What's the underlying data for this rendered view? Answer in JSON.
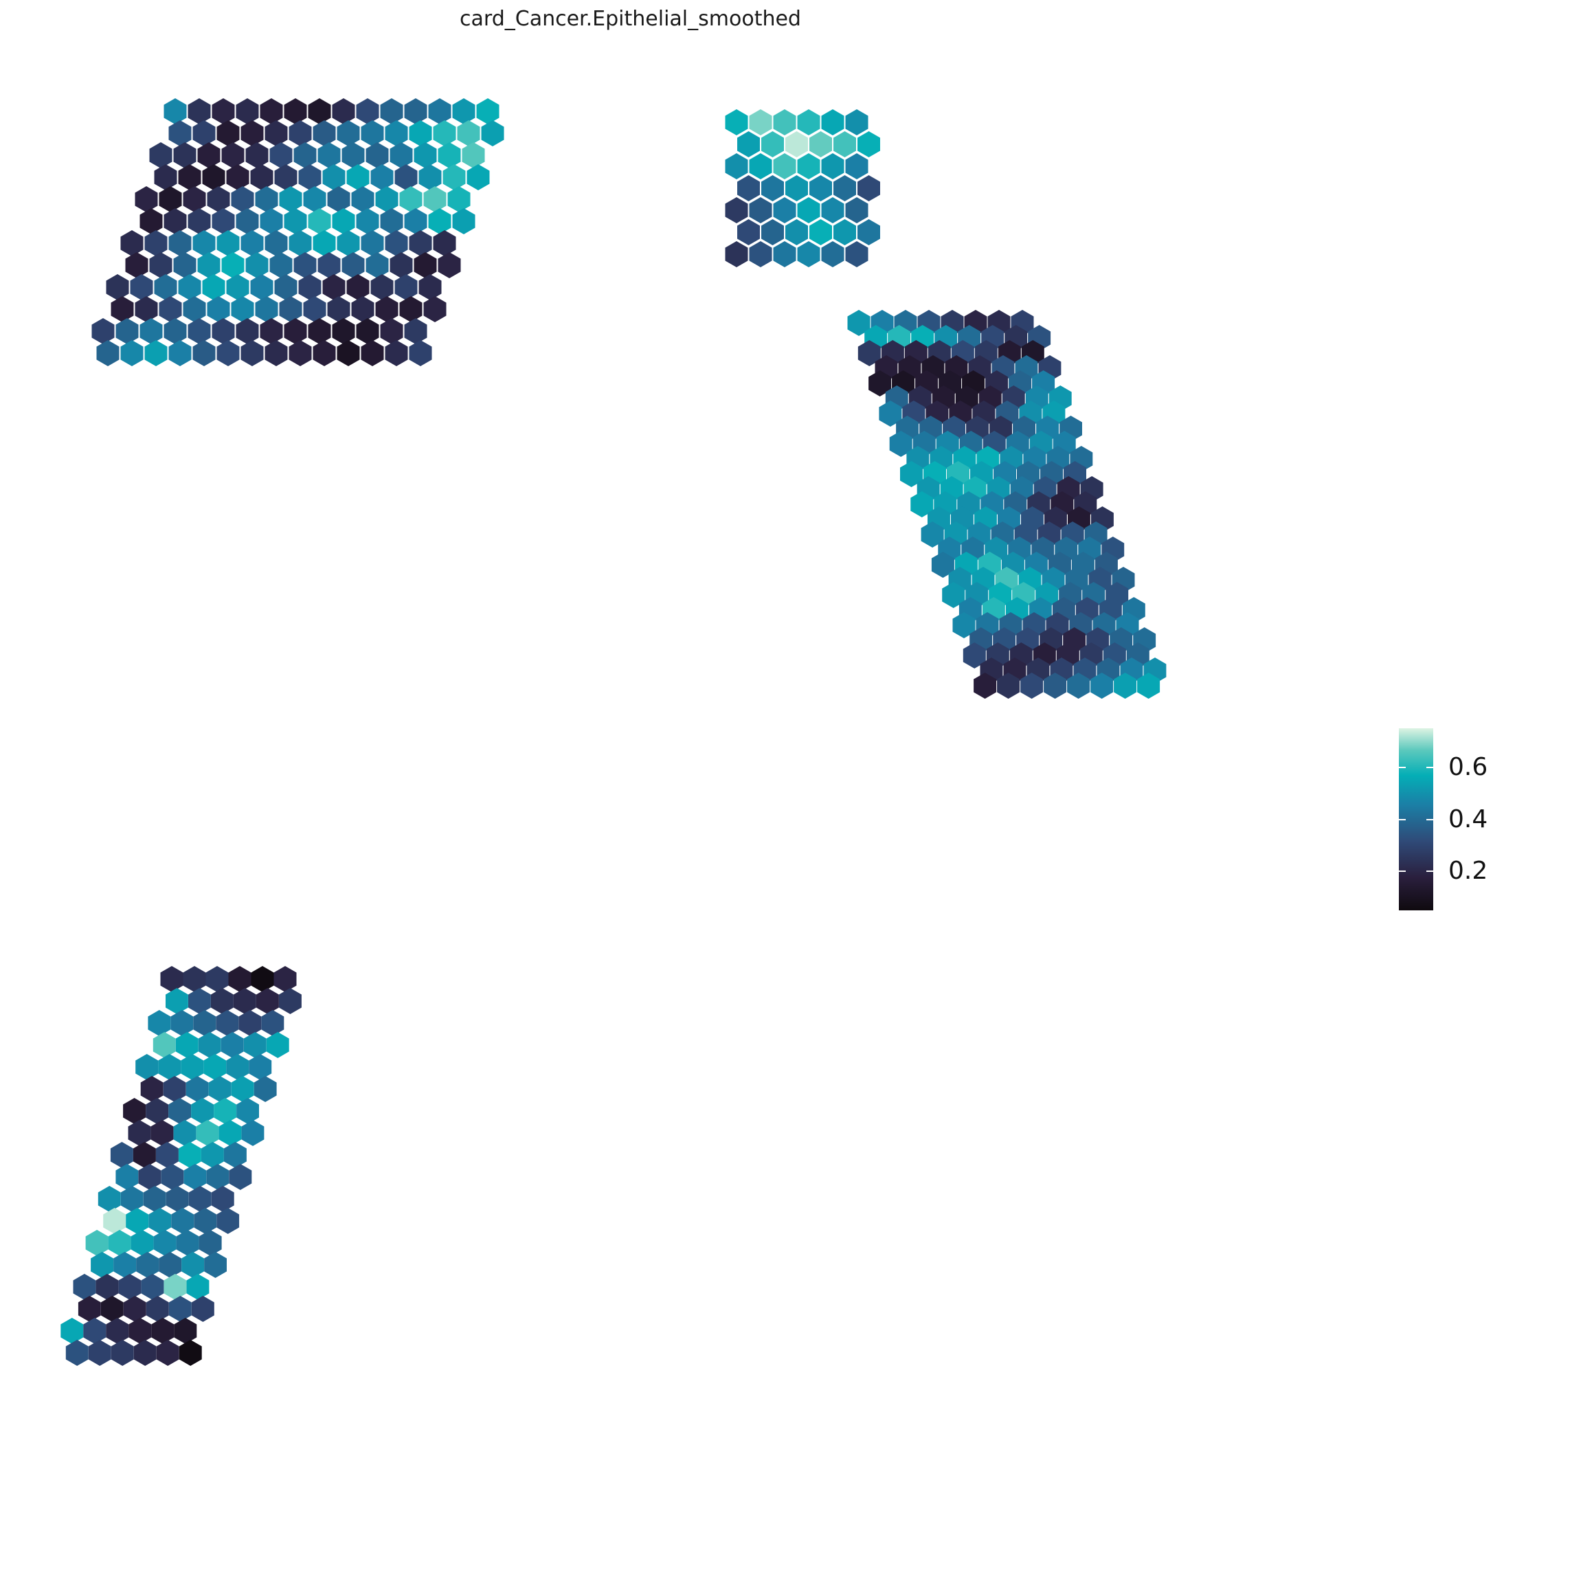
{
  "chart_data": {
    "type": "heatmap",
    "title": "card_Cancer.Epithelial_smoothed",
    "xlabel": "",
    "ylabel": "",
    "grid": false,
    "legend": {
      "placement": "right",
      "range": [
        0.05,
        0.75
      ],
      "ticks": [
        {
          "value": 0.2,
          "label": "0.2"
        },
        {
          "value": 0.4,
          "label": "0.4"
        },
        {
          "value": 0.6,
          "label": "0.6"
        }
      ]
    },
    "colormap": [
      "#0f0a0f",
      "#2a1f3d",
      "#2f4a78",
      "#1b7fa6",
      "#04aeb6",
      "#5cc9bd",
      "#ddf3e3"
    ],
    "na_color": "#808080",
    "regions": [
      {
        "rows": [
          [
            0.42,
            0.22,
            0.18,
            0.2,
            0.16,
            0.14,
            0.12,
            0.2,
            0.28,
            0.34,
            0.34,
            0.38,
            0.46,
            0.52
          ],
          [
            0.3,
            0.26,
            0.14,
            0.16,
            0.2,
            0.26,
            0.32,
            0.36,
            0.38,
            0.42,
            0.5,
            0.56,
            0.6,
            0.48
          ],
          [
            0.24,
            0.22,
            0.16,
            0.18,
            0.2,
            0.28,
            0.34,
            0.38,
            0.36,
            0.34,
            0.38,
            0.46,
            0.54,
            0.62
          ],
          [
            0.2,
            0.14,
            0.12,
            0.16,
            0.2,
            0.24,
            0.3,
            0.44,
            0.5,
            0.4,
            0.3,
            0.44,
            0.56,
            0.5
          ],
          [
            0.18,
            0.12,
            0.18,
            0.22,
            0.3,
            0.36,
            0.46,
            0.42,
            0.34,
            0.38,
            0.46,
            0.58,
            0.62,
            0.54
          ],
          [
            0.14,
            0.2,
            0.24,
            0.28,
            0.34,
            0.4,
            0.46,
            0.56,
            0.5,
            0.42,
            0.36,
            0.4,
            0.52,
            0.48
          ],
          [
            0.2,
            0.26,
            0.34,
            0.42,
            0.46,
            0.4,
            0.36,
            0.44,
            0.5,
            0.46,
            0.38,
            0.3,
            0.24,
            0.2
          ],
          [
            0.16,
            0.24,
            0.34,
            0.46,
            0.52,
            0.44,
            0.36,
            0.3,
            0.28,
            0.32,
            0.36,
            0.22,
            0.14,
            0.18
          ],
          [
            0.22,
            0.28,
            0.36,
            0.42,
            0.5,
            0.46,
            0.4,
            0.34,
            0.26,
            0.18,
            0.16,
            0.22,
            0.26,
            0.2
          ],
          [
            0.16,
            0.2,
            0.28,
            0.36,
            0.4,
            0.42,
            0.38,
            0.32,
            0.28,
            0.22,
            0.2,
            0.16,
            0.14,
            0.18
          ],
          [
            0.26,
            0.34,
            0.38,
            0.34,
            0.3,
            0.26,
            0.22,
            0.18,
            0.16,
            0.14,
            0.12,
            0.12,
            0.18,
            0.24
          ],
          [
            0.34,
            0.42,
            0.48,
            0.4,
            0.32,
            0.28,
            0.24,
            0.2,
            0.18,
            0.16,
            0.1,
            0.14,
            0.2,
            0.26
          ]
        ]
      },
      {
        "rows": [
          [
            0.52,
            0.66,
            0.6,
            0.56,
            0.5,
            0.44
          ],
          [
            0.48,
            0.58,
            0.72,
            0.64,
            0.6,
            0.52
          ],
          [
            0.44,
            0.5,
            0.6,
            0.54,
            0.46,
            0.4
          ],
          [
            0.3,
            0.38,
            0.46,
            0.42,
            0.36,
            0.28
          ],
          [
            0.24,
            0.32,
            0.4,
            0.5,
            0.42,
            0.34
          ],
          [
            0.28,
            0.34,
            0.44,
            0.52,
            0.46,
            0.38
          ],
          [
            0.22,
            0.3,
            0.38,
            0.42,
            0.36,
            0.3
          ]
        ]
      },
      {
        "rows": [
          [
            0.46,
            0.4,
            0.36,
            0.3,
            0.24,
            0.18,
            0.2,
            0.26
          ],
          [
            0.5,
            0.56,
            0.52,
            0.44,
            0.36,
            0.28,
            0.22,
            0.3
          ],
          [
            0.24,
            0.2,
            0.18,
            0.22,
            0.28,
            0.24,
            0.14,
            0.12
          ],
          [
            0.16,
            0.14,
            0.12,
            0.14,
            0.2,
            0.3,
            0.36,
            0.26
          ],
          [
            0.12,
            0.1,
            0.14,
            0.12,
            0.1,
            0.2,
            0.34,
            0.4
          ],
          [
            0.34,
            0.2,
            0.14,
            0.12,
            0.16,
            0.24,
            0.42,
            0.46
          ],
          [
            0.4,
            0.28,
            0.18,
            0.16,
            0.2,
            0.32,
            0.44,
            0.48
          ],
          [
            0.36,
            0.34,
            0.3,
            0.24,
            0.22,
            0.34,
            0.4,
            0.36
          ],
          [
            0.4,
            0.38,
            0.42,
            0.36,
            0.3,
            0.38,
            0.44,
            0.4
          ],
          [
            0.44,
            0.46,
            0.5,
            0.52,
            0.44,
            0.4,
            0.38,
            0.36
          ],
          [
            0.48,
            0.52,
            0.56,
            0.48,
            0.4,
            0.36,
            0.34,
            0.3
          ],
          [
            0.46,
            0.5,
            0.54,
            0.46,
            0.38,
            0.3,
            0.18,
            0.22
          ],
          [
            0.5,
            0.48,
            0.44,
            0.4,
            0.34,
            0.22,
            0.16,
            0.2
          ],
          [
            0.46,
            0.44,
            0.48,
            0.4,
            0.3,
            0.2,
            0.14,
            0.22
          ],
          [
            0.42,
            0.46,
            0.42,
            0.36,
            0.3,
            0.26,
            0.3,
            0.34
          ],
          [
            0.4,
            0.38,
            0.44,
            0.38,
            0.34,
            0.36,
            0.38,
            0.3
          ],
          [
            0.38,
            0.5,
            0.56,
            0.44,
            0.4,
            0.34,
            0.36,
            0.32
          ],
          [
            0.44,
            0.48,
            0.6,
            0.5,
            0.42,
            0.36,
            0.3,
            0.34
          ],
          [
            0.46,
            0.44,
            0.52,
            0.58,
            0.48,
            0.34,
            0.36,
            0.3
          ],
          [
            0.4,
            0.56,
            0.5,
            0.42,
            0.32,
            0.28,
            0.3,
            0.38
          ],
          [
            0.42,
            0.38,
            0.34,
            0.3,
            0.26,
            0.32,
            0.36,
            0.4
          ],
          [
            0.32,
            0.3,
            0.28,
            0.22,
            0.18,
            0.26,
            0.34,
            0.36
          ],
          [
            0.28,
            0.24,
            0.2,
            0.16,
            0.18,
            0.24,
            0.3,
            0.34
          ],
          [
            0.2,
            0.18,
            0.22,
            0.26,
            0.3,
            0.34,
            0.4,
            0.44
          ],
          [
            0.16,
            0.22,
            0.28,
            0.32,
            0.36,
            0.4,
            0.48,
            0.5
          ]
        ]
      },
      {
        "rows": [
          [
            0.2,
            0.22,
            0.24,
            0.14,
            0.06,
            0.18
          ],
          [
            0.48,
            0.3,
            0.22,
            0.2,
            0.18,
            0.24
          ],
          [
            0.42,
            0.38,
            0.34,
            0.3,
            0.26,
            0.3
          ],
          [
            0.62,
            0.5,
            0.44,
            0.4,
            0.44,
            0.5
          ],
          [
            0.44,
            0.46,
            0.48,
            0.5,
            0.44,
            0.4
          ],
          [
            0.18,
            0.26,
            0.38,
            0.44,
            0.48,
            0.36
          ],
          [
            0.14,
            0.22,
            0.34,
            0.46,
            0.54,
            0.42
          ],
          [
            0.2,
            0.18,
            0.44,
            0.58,
            0.5,
            0.4
          ],
          [
            0.3,
            0.14,
            0.28,
            0.52,
            0.46,
            0.38
          ],
          [
            0.4,
            0.26,
            0.3,
            0.4,
            0.36,
            0.3
          ],
          [
            0.44,
            0.38,
            0.34,
            0.32,
            0.3,
            0.28
          ],
          [
            0.72,
            0.5,
            0.44,
            0.38,
            0.34,
            0.3
          ],
          [
            0.6,
            0.56,
            0.48,
            0.42,
            0.38,
            0.34
          ],
          [
            0.46,
            0.4,
            0.36,
            0.34,
            0.44,
            0.36
          ],
          [
            0.3,
            0.22,
            0.26,
            0.3,
            0.66,
            0.5
          ],
          [
            0.16,
            0.12,
            0.18,
            0.24,
            0.3,
            0.26
          ],
          [
            0.5,
            0.28,
            0.2,
            0.16,
            0.14,
            0.12
          ],
          [
            0.3,
            0.26,
            0.24,
            0.2,
            0.18,
            0.06
          ]
        ]
      }
    ]
  }
}
